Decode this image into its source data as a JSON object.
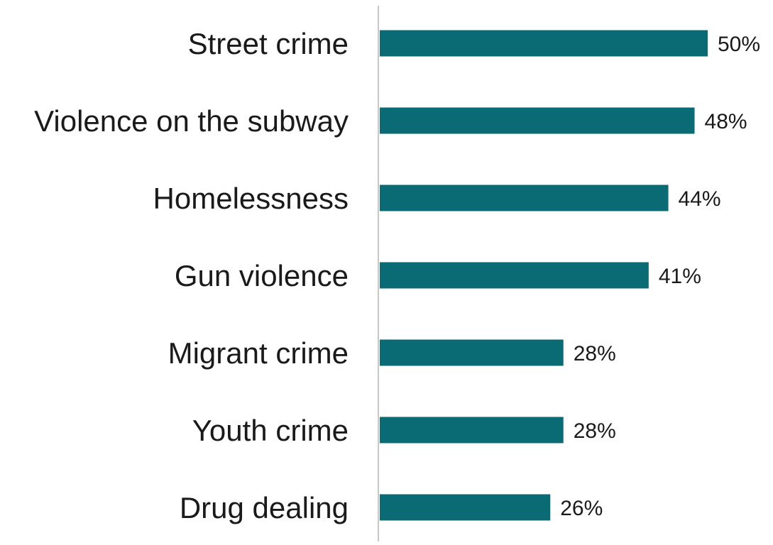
{
  "chart_data": {
    "type": "bar",
    "orientation": "horizontal",
    "categories": [
      "Street crime",
      "Violence on the subway",
      "Homelessness",
      "Gun violence",
      "Migrant crime",
      "Youth crime",
      "Drug dealing"
    ],
    "values": [
      50,
      48,
      44,
      41,
      28,
      28,
      26
    ],
    "value_labels": [
      "50%",
      "48%",
      "44%",
      "41%",
      "28%",
      "28%",
      "26%"
    ],
    "xlim": [
      0,
      50
    ],
    "bar_color": "#0b6b75",
    "axis_line_color": "#c8c8c8",
    "grid": false,
    "legend": "none"
  }
}
